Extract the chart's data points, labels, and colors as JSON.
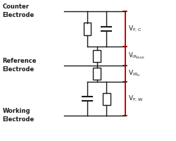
{
  "bg_color": "#ffffff",
  "line_color": "#1a1a1a",
  "red_color": "#cc0000",
  "figsize": [
    2.5,
    2.0
  ],
  "dpi": 100,
  "labels": {
    "counter": [
      "Counter",
      "Electrode"
    ],
    "reference": [
      "Reference",
      "Electrode"
    ],
    "working": [
      "Working",
      "Electrode"
    ]
  }
}
